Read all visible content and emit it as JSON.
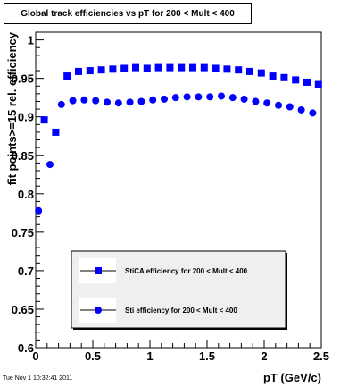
{
  "title": "Global track efficiencies vs pT for 200 < Mult < 400",
  "timestamp": "Tue Nov  1 10:32:41 2011",
  "colors": {
    "series": "#0000ff",
    "axis": "#000000",
    "legend_bg": "#efefef"
  },
  "chart_data": {
    "type": "scatter",
    "xlabel": "pT (GeV/c)",
    "ylabel": "fit points>=15 rel. efficiency",
    "xlim": [
      0,
      2.5
    ],
    "ylim": [
      0.6,
      1.01
    ],
    "xticks": [
      0,
      0.5,
      1,
      1.5,
      2,
      2.5
    ],
    "xtick_labels": [
      "0",
      "0.5",
      "1",
      "1.5",
      "2",
      "2.5"
    ],
    "yticks": [
      0.6,
      0.65,
      0.7,
      0.75,
      0.8,
      0.85,
      0.9,
      0.95,
      1
    ],
    "ytick_labels": [
      "0.6",
      "0.65",
      "0.7",
      "0.75",
      "0.8",
      "0.85",
      "0.9",
      "0.95",
      "1"
    ],
    "legend_position": "bottom-center",
    "series": [
      {
        "name": "StiCA efficiency  for 200 < Mult < 400",
        "marker": "square",
        "x": [
          0.025,
          0.075,
          0.125,
          0.175,
          0.225,
          0.275,
          0.325,
          0.375,
          0.425,
          0.475,
          0.525,
          0.575,
          0.625,
          0.675,
          0.725,
          0.775,
          0.825,
          0.875,
          0.925,
          0.975,
          1.025,
          1.075,
          1.125,
          1.175,
          1.225,
          1.275,
          1.325,
          1.375,
          1.425,
          1.475,
          1.525,
          1.575,
          1.625,
          1.675,
          1.725,
          1.775,
          1.825,
          1.875,
          1.925,
          1.975,
          2.025,
          2.075,
          2.125,
          2.175,
          2.225,
          2.275,
          2.325,
          2.375,
          2.425,
          2.475
        ],
        "y": [
          null,
          0.896,
          null,
          0.88,
          null,
          0.953,
          null,
          0.959,
          null,
          0.96,
          null,
          0.961,
          null,
          0.962,
          null,
          0.963,
          null,
          0.964,
          null,
          0.963,
          null,
          0.964,
          null,
          0.964,
          null,
          0.964,
          null,
          0.964,
          null,
          0.964,
          null,
          0.963,
          null,
          0.962,
          null,
          0.961,
          null,
          0.959,
          null,
          0.957,
          null,
          0.953,
          null,
          0.951,
          null,
          0.948,
          null,
          0.945,
          null,
          0.942
        ]
      },
      {
        "name": "Sti efficiency  for 200 < Mult < 400",
        "marker": "circle",
        "x": [
          0.025,
          0.075,
          0.125,
          0.175,
          0.225,
          0.275,
          0.325,
          0.375,
          0.425,
          0.475,
          0.525,
          0.575,
          0.625,
          0.675,
          0.725,
          0.775,
          0.825,
          0.875,
          0.925,
          0.975,
          1.025,
          1.075,
          1.125,
          1.175,
          1.225,
          1.275,
          1.325,
          1.375,
          1.425,
          1.475,
          1.525,
          1.575,
          1.625,
          1.675,
          1.725,
          1.775,
          1.825,
          1.875,
          1.925,
          1.975,
          2.025,
          2.075,
          2.125,
          2.175,
          2.225,
          2.275,
          2.325,
          2.375,
          2.425,
          2.475
        ],
        "y": [
          0.778,
          null,
          0.838,
          null,
          0.916,
          null,
          0.921,
          null,
          0.922,
          null,
          0.921,
          null,
          0.919,
          null,
          0.918,
          null,
          0.919,
          null,
          0.92,
          null,
          0.922,
          null,
          0.923,
          null,
          0.925,
          null,
          0.926,
          null,
          0.926,
          null,
          0.926,
          null,
          0.927,
          null,
          0.925,
          null,
          0.923,
          null,
          0.92,
          null,
          0.918,
          null,
          0.915,
          null,
          0.913,
          null,
          0.909,
          null,
          0.905,
          null
        ]
      }
    ]
  }
}
